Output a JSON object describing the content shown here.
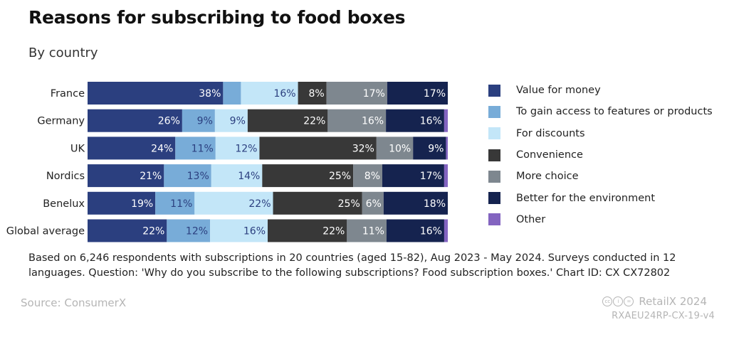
{
  "header": {
    "title": "Reasons for subscribing to food boxes",
    "subtitle": "By country"
  },
  "chart_data": {
    "type": "bar",
    "orientation": "horizontal",
    "stacked": true,
    "categories": [
      "France",
      "Germany",
      "UK",
      "Nordics",
      "Benelux",
      "Global average"
    ],
    "series": [
      {
        "name": "Value for money",
        "color": "#2b3f7f",
        "values": [
          38,
          26,
          24,
          21,
          19,
          22
        ],
        "labels": [
          "38%",
          "26%",
          "24%",
          "21%",
          "19%",
          "22%"
        ]
      },
      {
        "name": "To gain access to features or products",
        "color": "#78acd8",
        "values": [
          5,
          9,
          11,
          13,
          11,
          12
        ],
        "labels": [
          "",
          "9%",
          "11%",
          "13%",
          "11%",
          "12%"
        ]
      },
      {
        "name": "For discounts",
        "color": "#c3e6f8",
        "values": [
          16,
          9,
          12,
          14,
          22,
          16
        ],
        "labels": [
          "16%",
          "9%",
          "12%",
          "14%",
          "22%",
          "16%"
        ]
      },
      {
        "name": "Convenience",
        "color": "#383838",
        "values": [
          8,
          22,
          32,
          25,
          25,
          22
        ],
        "labels": [
          "8%",
          "22%",
          "32%",
          "25%",
          "25%",
          "22%"
        ]
      },
      {
        "name": "More choice",
        "color": "#7e878f",
        "values": [
          17,
          16,
          10,
          8,
          6,
          11
        ],
        "labels": [
          "17%",
          "16%",
          "10%",
          "8%",
          "6%",
          "11%"
        ]
      },
      {
        "name": "Better for the environment",
        "color": "#15234f",
        "values": [
          17,
          16,
          9,
          17,
          18,
          16
        ],
        "labels": [
          "17%",
          "16%",
          "9%",
          "17%",
          "18%",
          "16%"
        ]
      },
      {
        "name": "Other",
        "color": "#8364c0",
        "values": [
          0,
          1,
          0.5,
          1,
          0,
          1
        ],
        "labels": [
          "",
          "",
          "",
          "",
          "",
          ""
        ]
      }
    ],
    "label_colors": [
      "#ffffff",
      "#2b3f7f",
      "#2b3f7f",
      "#ffffff",
      "#ffffff",
      "#ffffff",
      "#ffffff"
    ],
    "legend_position": "right",
    "grid": false
  },
  "footer": {
    "note": "Based on 6,246 respondents with subscriptions in 20 countries (aged 15-82), Aug 2023 - May 2024. Surveys conducted in 12 languages. Question: 'Why do you subscribe to the following subscriptions? Food subscription boxes.' Chart ID: CX CX72802",
    "source": "Source: ConsumerX",
    "brand": "RetailX 2024",
    "chart_code": "RXAEU24RP-CX-19-v4",
    "license_icon": "creative-commons-icon"
  }
}
